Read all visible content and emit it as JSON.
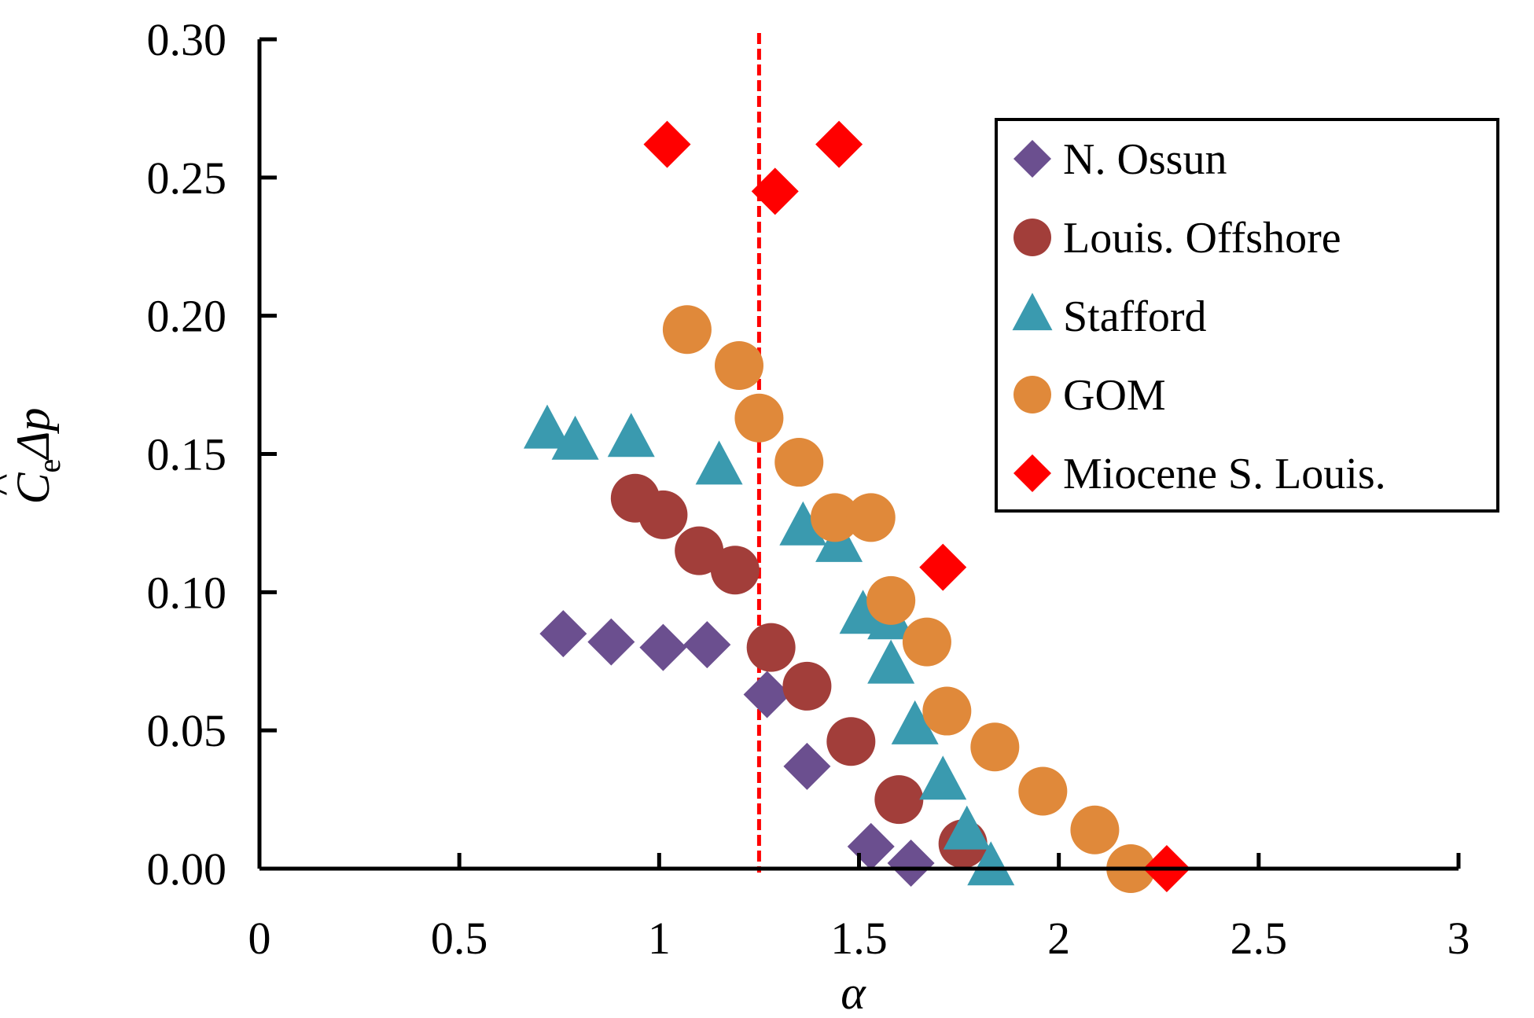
{
  "chart_data": {
    "type": "scatter",
    "title": "",
    "xlabel": "α",
    "ylabel_main": "C",
    "ylabel_hat": "^",
    "ylabel_sub": "e",
    "ylabel_tail": "Δp",
    "xlim": [
      0,
      3
    ],
    "ylim": [
      0,
      0.3
    ],
    "xticks": [
      0,
      0.5,
      1,
      1.5,
      2,
      2.5,
      3
    ],
    "xtick_labels": [
      "0",
      "0.5",
      "1",
      "1.5",
      "2",
      "2.5",
      "3"
    ],
    "yticks": [
      0,
      0.05,
      0.1,
      0.15,
      0.2,
      0.25,
      0.3
    ],
    "ytick_labels": [
      "0.00",
      "0.05",
      "0.10",
      "0.15",
      "0.20",
      "0.25",
      "0.30"
    ],
    "grid": false,
    "legend_position": "top-right",
    "reference_line": {
      "x": 1.25,
      "color": "#ff0000",
      "style": "dashed"
    },
    "series": [
      {
        "name": "N. Ossun",
        "marker": "diamond",
        "color": "#6b4f8f",
        "points": [
          [
            0.76,
            0.085
          ],
          [
            0.88,
            0.082
          ],
          [
            1.01,
            0.08
          ],
          [
            1.12,
            0.081
          ],
          [
            1.27,
            0.063
          ],
          [
            1.37,
            0.037
          ],
          [
            1.53,
            0.008
          ],
          [
            1.63,
            0.002
          ]
        ]
      },
      {
        "name": "Louis. Offshore",
        "marker": "circle",
        "color": "#a23e3a",
        "points": [
          [
            0.94,
            0.134
          ],
          [
            1.01,
            0.128
          ],
          [
            1.1,
            0.115
          ],
          [
            1.19,
            0.108
          ],
          [
            1.28,
            0.08
          ],
          [
            1.37,
            0.066
          ],
          [
            1.48,
            0.046
          ],
          [
            1.6,
            0.025
          ],
          [
            1.76,
            0.009
          ]
        ]
      },
      {
        "name": "Stafford",
        "marker": "triangle",
        "color": "#3a9aaf",
        "points": [
          [
            0.72,
            0.158
          ],
          [
            0.79,
            0.154
          ],
          [
            0.93,
            0.155
          ],
          [
            1.15,
            0.145
          ],
          [
            1.36,
            0.123
          ],
          [
            1.45,
            0.117
          ],
          [
            1.51,
            0.091
          ],
          [
            1.58,
            0.089
          ],
          [
            1.58,
            0.073
          ],
          [
            1.64,
            0.051
          ],
          [
            1.71,
            0.031
          ],
          [
            1.77,
            0.013
          ],
          [
            1.83,
            0.0
          ]
        ]
      },
      {
        "name": "GOM",
        "marker": "circle",
        "color": "#e0893a",
        "points": [
          [
            1.07,
            0.195
          ],
          [
            1.2,
            0.182
          ],
          [
            1.25,
            0.163
          ],
          [
            1.35,
            0.147
          ],
          [
            1.44,
            0.127
          ],
          [
            1.53,
            0.127
          ],
          [
            1.58,
            0.097
          ],
          [
            1.67,
            0.082
          ],
          [
            1.72,
            0.057
          ],
          [
            1.84,
            0.044
          ],
          [
            1.96,
            0.028
          ],
          [
            2.09,
            0.014
          ],
          [
            2.18,
            0.0
          ]
        ]
      },
      {
        "name": "Miocene S. Louis.",
        "marker": "diamond",
        "color": "#ff0000",
        "points": [
          [
            1.02,
            0.262
          ],
          [
            1.29,
            0.245
          ],
          [
            1.45,
            0.262
          ],
          [
            1.71,
            0.109
          ],
          [
            2.27,
            0.0
          ]
        ]
      }
    ]
  }
}
